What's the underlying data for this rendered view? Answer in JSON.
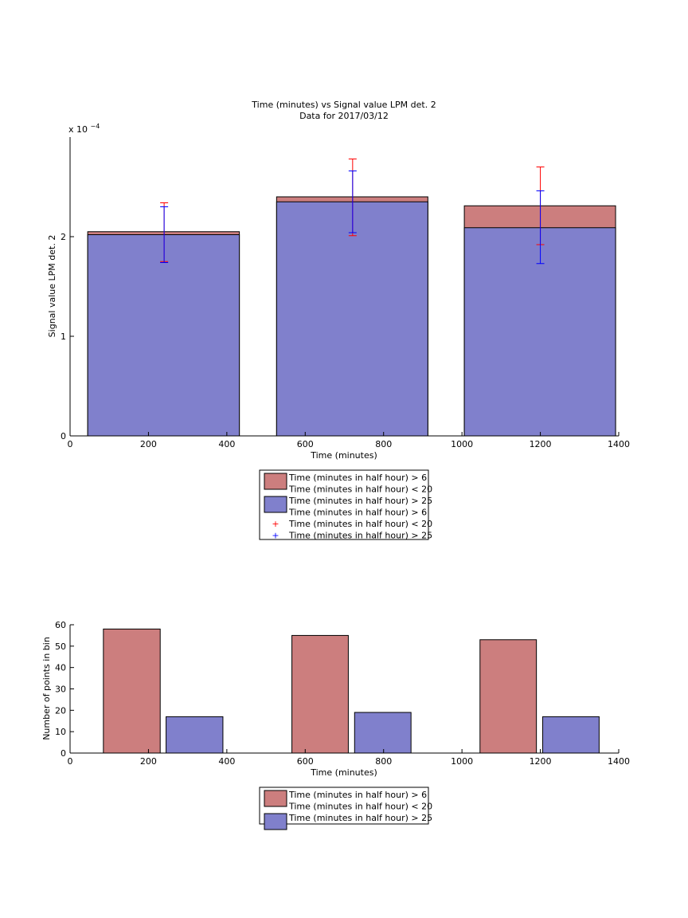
{
  "chart_data": [
    {
      "type": "bar",
      "title": "Time (minutes) vs Signal value LPM det. 2",
      "subtitle": "Data for 2017/03/12",
      "xlabel": "Time (minutes)",
      "ylabel": "Signal value LPM det. 2",
      "y_exponent_label": "x 10",
      "y_exponent_power": "−4",
      "xlim": [
        0,
        1400
      ],
      "ylim": [
        0,
        0.0003
      ],
      "x_ticks": [
        0,
        200,
        400,
        600,
        800,
        1000,
        1200,
        1400
      ],
      "x_tick_labels": [
        "0",
        "200",
        "400",
        "600",
        "800",
        "1000",
        "1200",
        "1400"
      ],
      "y_ticks": [
        0,
        0.0001,
        0.0002
      ],
      "y_tick_labels": [
        "0",
        "1",
        "2"
      ],
      "bars": [
        {
          "x0": 45,
          "x1": 432,
          "blue": 0.000202,
          "red": 0.000205
        },
        {
          "x0": 527,
          "x1": 913,
          "blue": 0.000235,
          "red": 0.00024
        },
        {
          "x0": 1006,
          "x1": 1392,
          "blue": 0.000209,
          "red": 0.000231
        }
      ],
      "errorbars": [
        {
          "x": 240,
          "red_low": 0.000175,
          "red_high": 0.000234,
          "blue_low": 0.000174,
          "blue_high": 0.00023
        },
        {
          "x": 721,
          "red_low": 0.000201,
          "red_high": 0.000278,
          "blue_low": 0.000204,
          "blue_high": 0.000266
        },
        {
          "x": 1200,
          "red_low": 0.000192,
          "red_high": 0.00027,
          "blue_low": 0.000173,
          "blue_high": 0.000246
        }
      ],
      "legend": {
        "position": "below",
        "entries": [
          {
            "kind": "patch",
            "color": "#cc7e7e",
            "label": "Time (minutes in half hour) > 6"
          },
          {
            "kind": "text",
            "label": "Time (minutes in half hour) < 20"
          },
          {
            "kind": "patch",
            "color": "#8080cc",
            "label": "Time (minutes in half hour) > 25"
          },
          {
            "kind": "text",
            "label": "Time (minutes in half hour) > 6"
          },
          {
            "kind": "marker",
            "color": "#ff0000",
            "label": "Time (minutes in half hour) < 20"
          },
          {
            "kind": "marker",
            "color": "#0000ff",
            "label": "Time (minutes in half hour) > 25"
          }
        ]
      },
      "colors": {
        "red_fill": "#cc7e7e",
        "blue_fill": "#8080cc",
        "red_err": "#ff0000",
        "blue_err": "#0000ff"
      },
      "grid": false
    },
    {
      "type": "bar",
      "xlabel": "Time (minutes)",
      "ylabel": "Number of points in bin",
      "xlim": [
        0,
        1400
      ],
      "ylim": [
        0,
        60
      ],
      "x_ticks": [
        0,
        200,
        400,
        600,
        800,
        1000,
        1200,
        1400
      ],
      "x_tick_labels": [
        "0",
        "200",
        "400",
        "600",
        "800",
        "1000",
        "1200",
        "1400"
      ],
      "y_ticks": [
        0,
        10,
        20,
        30,
        40,
        50,
        60
      ],
      "y_tick_labels": [
        "0",
        "10",
        "20",
        "30",
        "40",
        "50",
        "60"
      ],
      "bars": [
        {
          "x0": 85,
          "x1": 230,
          "value": 58,
          "color": "#cc7e7e"
        },
        {
          "x0": 245,
          "x1": 390,
          "value": 17,
          "color": "#8080cc"
        },
        {
          "x0": 566,
          "x1": 710,
          "value": 55,
          "color": "#cc7e7e"
        },
        {
          "x0": 726,
          "x1": 870,
          "value": 19,
          "color": "#8080cc"
        },
        {
          "x0": 1046,
          "x1": 1190,
          "value": 53,
          "color": "#cc7e7e"
        },
        {
          "x0": 1206,
          "x1": 1350,
          "value": 17,
          "color": "#8080cc"
        }
      ],
      "legend": {
        "position": "below",
        "entries": [
          {
            "kind": "patch",
            "color": "#cc7e7e",
            "label": "Time (minutes in half hour) > 6"
          },
          {
            "kind": "text",
            "label": "Time (minutes in half hour) < 20"
          },
          {
            "kind": "patch",
            "color": "#8080cc",
            "label": "Time (minutes in half hour) > 25"
          }
        ]
      },
      "grid": false
    }
  ]
}
